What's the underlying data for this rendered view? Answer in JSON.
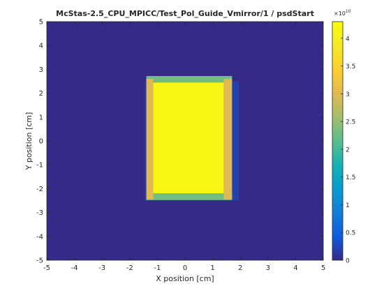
{
  "chart_data": {
    "type": "heatmap",
    "title": "McStas-2.5_CPU_MPICC/Test_Pol_Guide_Vmirror/1 / psdStart",
    "xlabel": "X position [cm]",
    "ylabel": "Y position [cm]",
    "xlim": [
      -5,
      5
    ],
    "ylim": [
      -5,
      5
    ],
    "x_ticks": [
      "-5",
      "-4",
      "-3",
      "-2",
      "-1",
      "0",
      "1",
      "2",
      "3",
      "4",
      "5"
    ],
    "y_ticks": [
      "-5",
      "-4",
      "-3",
      "-2",
      "-1",
      "0",
      "1",
      "2",
      "3",
      "4",
      "5"
    ],
    "colorbar": {
      "range": [
        0,
        43000000000.0
      ],
      "exponent_label": "×10",
      "exponent_power": "10",
      "ticks": [
        {
          "value": 0,
          "label": "0"
        },
        {
          "value": 0.5,
          "label": "0.5"
        },
        {
          "value": 1,
          "label": "1"
        },
        {
          "value": 1.5,
          "label": "1.5"
        },
        {
          "value": 2,
          "label": "2"
        },
        {
          "value": 2.5,
          "label": "2.5"
        },
        {
          "value": 3,
          "label": "3"
        },
        {
          "value": 3.5,
          "label": "3.5"
        },
        {
          "value": 4,
          "label": "4"
        }
      ],
      "colormap": "parula"
    },
    "background_value": 0,
    "regions": [
      {
        "name": "halo",
        "x": [
          -1.45,
          1.95
        ],
        "y": [
          -2.5,
          2.5
        ],
        "value": 0.2
      },
      {
        "name": "top-edge-strip",
        "x": [
          -1.4,
          1.7
        ],
        "y": [
          2.45,
          2.72
        ],
        "value": 2.3
      },
      {
        "name": "bottom-edge-strip",
        "x": [
          -1.4,
          1.7
        ],
        "y": [
          -2.48,
          -2.2
        ],
        "value": 2.3
      },
      {
        "name": "left-edge-strip",
        "x": [
          -1.4,
          -1.15
        ],
        "y": [
          -2.45,
          2.6
        ],
        "value": 3.0
      },
      {
        "name": "right-edge-strip",
        "x": [
          1.4,
          1.7
        ],
        "y": [
          -2.45,
          2.6
        ],
        "value": 3.0
      },
      {
        "name": "core",
        "x": [
          -1.15,
          1.4
        ],
        "y": [
          -2.2,
          2.45
        ],
        "value": 4.2
      }
    ]
  }
}
